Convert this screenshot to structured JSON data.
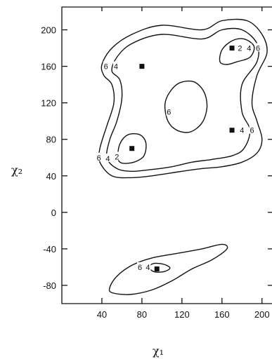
{
  "chart_data": {
    "type": "contour",
    "title": "",
    "xlabel": "χ₁",
    "ylabel": "χ₂",
    "xlim": [
      0,
      210
    ],
    "ylim": [
      -100,
      225
    ],
    "x_ticks": [
      40,
      80,
      120,
      160,
      200
    ],
    "y_ticks": [
      200,
      160,
      120,
      80,
      40,
      0,
      -40,
      -80
    ],
    "grid": false,
    "contours": [
      {
        "name": "outer-6",
        "level": "6",
        "points": [
          [
            42,
            150
          ],
          [
            40,
            162
          ],
          [
            50,
            180
          ],
          [
            70,
            195
          ],
          [
            100,
            205
          ],
          [
            140,
            200
          ],
          [
            160,
            210
          ],
          [
            185,
            210
          ],
          [
            200,
            195
          ],
          [
            205,
            175
          ],
          [
            195,
            150
          ],
          [
            190,
            120
          ],
          [
            195,
            100
          ],
          [
            200,
            80
          ],
          [
            195,
            65
          ],
          [
            180,
            55
          ],
          [
            160,
            50
          ],
          [
            140,
            48
          ],
          [
            120,
            45
          ],
          [
            90,
            40
          ],
          [
            70,
            38
          ],
          [
            50,
            40
          ],
          [
            38,
            55
          ],
          [
            38,
            70
          ],
          [
            45,
            95
          ],
          [
            52,
            120
          ],
          [
            50,
            140
          ],
          [
            42,
            150
          ]
        ]
      },
      {
        "name": "mid-4",
        "level": "4",
        "points": [
          [
            50,
            155
          ],
          [
            55,
            170
          ],
          [
            70,
            185
          ],
          [
            100,
            195
          ],
          [
            140,
            190
          ],
          [
            160,
            200
          ],
          [
            180,
            200
          ],
          [
            195,
            185
          ],
          [
            195,
            165
          ],
          [
            180,
            140
          ],
          [
            180,
            110
          ],
          [
            188,
            90
          ],
          [
            182,
            70
          ],
          [
            170,
            62
          ],
          [
            150,
            58
          ],
          [
            130,
            55
          ],
          [
            110,
            50
          ],
          [
            90,
            47
          ],
          [
            70,
            45
          ],
          [
            55,
            48
          ],
          [
            45,
            60
          ],
          [
            48,
            80
          ],
          [
            55,
            100
          ],
          [
            60,
            125
          ],
          [
            58,
            145
          ],
          [
            50,
            155
          ]
        ]
      },
      {
        "name": "inner-2-high",
        "level": "2",
        "points": [
          [
            158,
            165
          ],
          [
            160,
            178
          ],
          [
            170,
            188
          ],
          [
            182,
            190
          ],
          [
            192,
            182
          ],
          [
            188,
            170
          ],
          [
            175,
            165
          ],
          [
            165,
            162
          ],
          [
            158,
            165
          ]
        ]
      },
      {
        "name": "inner-2-low",
        "level": "2",
        "points": [
          [
            56,
            60
          ],
          [
            58,
            75
          ],
          [
            66,
            85
          ],
          [
            78,
            85
          ],
          [
            84,
            76
          ],
          [
            82,
            62
          ],
          [
            72,
            55
          ],
          [
            60,
            54
          ],
          [
            56,
            60
          ]
        ]
      },
      {
        "name": "center-6",
        "level": "6",
        "points": [
          [
            103,
            118
          ],
          [
            108,
            132
          ],
          [
            118,
            142
          ],
          [
            132,
            143
          ],
          [
            142,
            132
          ],
          [
            145,
            115
          ],
          [
            140,
            98
          ],
          [
            128,
            88
          ],
          [
            115,
            90
          ],
          [
            106,
            100
          ],
          [
            103,
            118
          ]
        ]
      },
      {
        "name": "lower-outer-6",
        "level": "6",
        "points": [
          [
            48,
            -82
          ],
          [
            55,
            -70
          ],
          [
            70,
            -58
          ],
          [
            90,
            -50
          ],
          [
            115,
            -45
          ],
          [
            140,
            -40
          ],
          [
            160,
            -35
          ],
          [
            165,
            -40
          ],
          [
            150,
            -52
          ],
          [
            130,
            -62
          ],
          [
            110,
            -75
          ],
          [
            90,
            -85
          ],
          [
            68,
            -90
          ],
          [
            50,
            -88
          ],
          [
            48,
            -82
          ]
        ]
      },
      {
        "name": "lower-inner-4",
        "level": "4",
        "points": [
          [
            87,
            -60
          ],
          [
            92,
            -56
          ],
          [
            102,
            -57
          ],
          [
            108,
            -61
          ],
          [
            102,
            -65
          ],
          [
            92,
            -65
          ],
          [
            87,
            -60
          ]
        ]
      }
    ],
    "contour_labels": [
      {
        "text": "6",
        "x": 44,
        "y": 160
      },
      {
        "text": "4",
        "x": 54,
        "y": 160
      },
      {
        "text": "2",
        "x": 178,
        "y": 180
      },
      {
        "text": "4",
        "x": 187,
        "y": 180
      },
      {
        "text": "6",
        "x": 196,
        "y": 180
      },
      {
        "text": "6",
        "x": 107,
        "y": 110
      },
      {
        "text": "4",
        "x": 180,
        "y": 90
      },
      {
        "text": "6",
        "x": 190,
        "y": 90
      },
      {
        "text": "6",
        "x": 37,
        "y": 60
      },
      {
        "text": "4",
        "x": 46,
        "y": 59
      },
      {
        "text": "2",
        "x": 55,
        "y": 61
      },
      {
        "text": "6",
        "x": 78,
        "y": -60
      },
      {
        "text": "4",
        "x": 86,
        "y": -60
      }
    ],
    "markers": [
      {
        "x": 170,
        "y": 180
      },
      {
        "x": 80,
        "y": 160
      },
      {
        "x": 170,
        "y": 90
      },
      {
        "x": 70,
        "y": 70
      },
      {
        "x": 95,
        "y": -62
      }
    ]
  }
}
